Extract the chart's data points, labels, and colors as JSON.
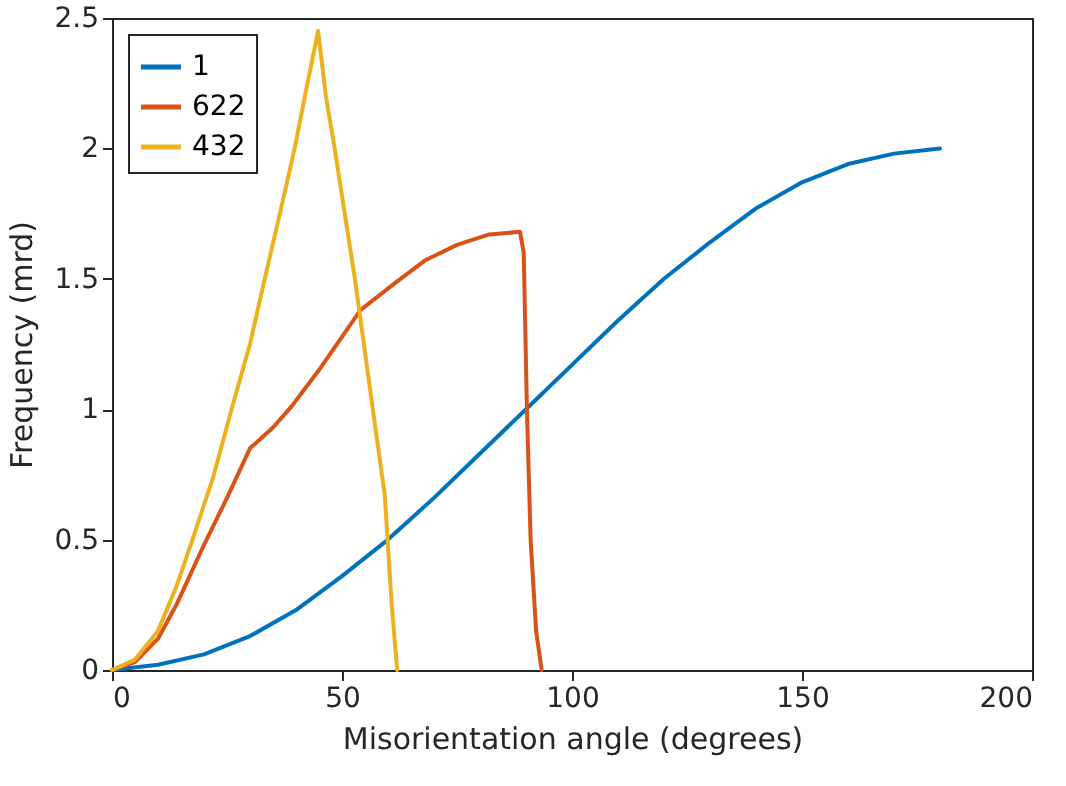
{
  "chart_data": {
    "type": "line",
    "xlabel": "Misorientation angle (degrees)",
    "ylabel": "Frequency (mrd)",
    "xlim": [
      0,
      200
    ],
    "xticks": [
      0,
      50,
      100,
      150,
      200
    ],
    "ylim": [
      0,
      2.5
    ],
    "yticks": [
      0,
      0.5,
      1,
      1.5,
      2,
      2.5
    ],
    "grid": false,
    "legend": "top left",
    "line_style": "solid",
    "marker": "none",
    "series": [
      {
        "name": "1",
        "color": "#0072bd",
        "x": [
          0,
          10,
          20,
          30,
          40,
          50,
          60,
          70,
          80,
          90,
          100,
          110,
          120,
          130,
          140,
          150,
          160,
          170,
          180
        ],
        "values": [
          0,
          0.02,
          0.06,
          0.13,
          0.23,
          0.36,
          0.5,
          0.66,
          0.83,
          1,
          1.17,
          1.34,
          1.5,
          1.64,
          1.77,
          1.87,
          1.94,
          1.98,
          2
        ]
      },
      {
        "name": "622",
        "color": "#d95319",
        "x": [
          0,
          5,
          10,
          14,
          20,
          25,
          30,
          35,
          39,
          45,
          54,
          62,
          68,
          75,
          82,
          88.7,
          89.5,
          90.2,
          91,
          92.2,
          93.4
        ],
        "values": [
          0,
          0.03,
          0.12,
          0.25,
          0.48,
          0.66,
          0.85,
          0.93,
          1.01,
          1.15,
          1.38,
          1.49,
          1.57,
          1.63,
          1.67,
          1.68,
          1.6,
          1,
          0.5,
          0.15,
          0
        ]
      },
      {
        "name": "432",
        "color": "#edb120",
        "x": [
          0,
          5,
          10,
          14,
          17.5,
          22,
          26,
          30,
          33.2,
          36.5,
          39.7,
          42.5,
          44.8,
          46.5,
          48.4,
          52.8,
          56.7,
          59.3,
          60.8,
          62
        ],
        "values": [
          0,
          0.04,
          0.15,
          0.32,
          0.5,
          0.74,
          1,
          1.25,
          1.5,
          1.75,
          2,
          2.25,
          2.45,
          2.2,
          2,
          1.5,
          1,
          0.67,
          0.25,
          0
        ]
      }
    ]
  }
}
